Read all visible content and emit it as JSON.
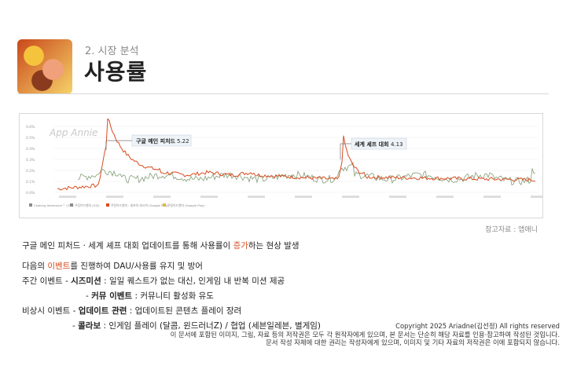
{
  "header": {
    "subtitle": "2. 시장 분석",
    "title": "사용률"
  },
  "chart": {
    "watermark": "App Annie",
    "y_ticks": [
      "0.6%",
      "0.5%",
      "0.4%",
      "0.3%",
      "0.2%",
      "0.1%",
      "0.0%"
    ],
    "callouts": [
      {
        "label": "구글 메인 피처드",
        "value": "5.22"
      },
      {
        "label": "세계 셰프 대회",
        "value": "4.13"
      }
    ],
    "legend": [
      {
        "label": "Cooking Adventure™ (iOS)",
        "color": "#8a8a8a"
      },
      {
        "label": "쿠킹어드벤처 (iOS)",
        "color": "#8a8a8a"
      },
      {
        "label": "쿠킹어드벤처 : 셰프의 레시피 (Google Play)",
        "color": "#d94b1f"
      },
      {
        "label": "쿠킹어드벤처 (Google Play)",
        "color": "#e2b93b"
      }
    ],
    "colors": {
      "red": "#d94b1f",
      "green": "#8da682"
    }
  },
  "source": "참고자료 : 앱애니",
  "body": {
    "line1_pre": "구글 메인 피처드 · 세계 셰프 대회 업데이트를 통해 사용률이 ",
    "line1_accent": "증가",
    "line1_post": "하는 현상 발생",
    "line2_pre": "다음의 ",
    "line2_accent": "이벤트",
    "line2_post": "를 진행하여 DAU/사용률 유지 및 방어",
    "weekly_label": "주간 이벤트  -",
    "weekly_1_name": "시즈미션",
    "weekly_1_desc": ": 일일 퀘스트가 없는 대신, 인게임 내 반복 미션 제공",
    "weekly_2_dash": "-",
    "weekly_2_name": "커뮤 이벤트",
    "weekly_2_desc": ": 커뮤니티 활성화 유도",
    "irregular_label": "비상시 이벤트  -",
    "irregular_1_name": "업데이트 관련",
    "irregular_1_desc": ": 업데이트된 콘텐츠 플레이 장려",
    "irregular_2_dash": "-",
    "irregular_2_name": "콜라보",
    "irregular_2_desc": ": 인게임 플레이 (달콤, 윈드러너Z) / 협업 (세븐일레븐, 별게임)"
  },
  "copyright": {
    "line1": "Copyright 2025 Ariadne(김선정) All rights reserved",
    "line2": "이 문서에 포함된 이미지, 그림, 자료 등의 저작권은 모두 각 원작자에게 있으며, 본 문서는 단순히 해당 자료를 인용·참고하여 작성된 것입니다.",
    "line3": "문서 작성 자체에 대한 권리는 작성자에게 있으며, 이미지 및 기타 자료의 저작권은 이에 포함되지 않습니다."
  }
}
